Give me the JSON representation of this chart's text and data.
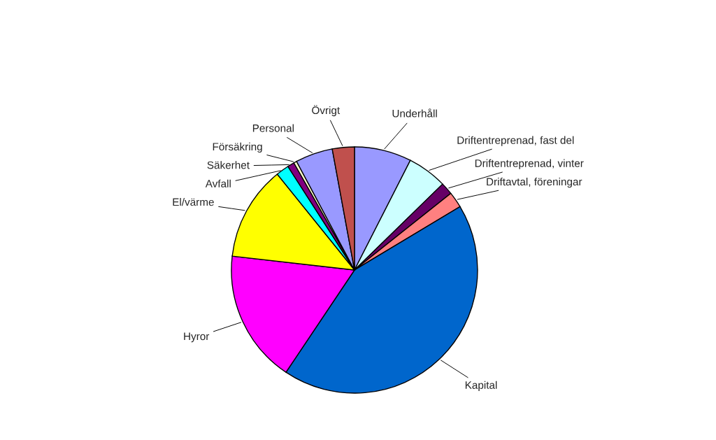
{
  "chart_data": {
    "type": "pie",
    "categories": [
      "Underhåll",
      "Driftentreprenad, fast del",
      "Driftentreprenad, vinter",
      "Driftavtal, föreningar",
      "Kapital",
      "Hyror",
      "El/värme",
      "Avfall",
      "Säkerhet",
      "Försäkring",
      "Personal",
      "Övrigt"
    ],
    "values": [
      7.5,
      5.2,
      1.6,
      2.1,
      43.0,
      17.4,
      12.4,
      1.7,
      0.9,
      0.4,
      4.9,
      2.9
    ],
    "colors": [
      "#9999ff",
      "#ccffff",
      "#660066",
      "#ff8080",
      "#0066cc",
      "#ff00ff",
      "#ffff00",
      "#00ffff",
      "#800080",
      "#ffffcc",
      "#9999ff",
      "#c0504d"
    ]
  }
}
